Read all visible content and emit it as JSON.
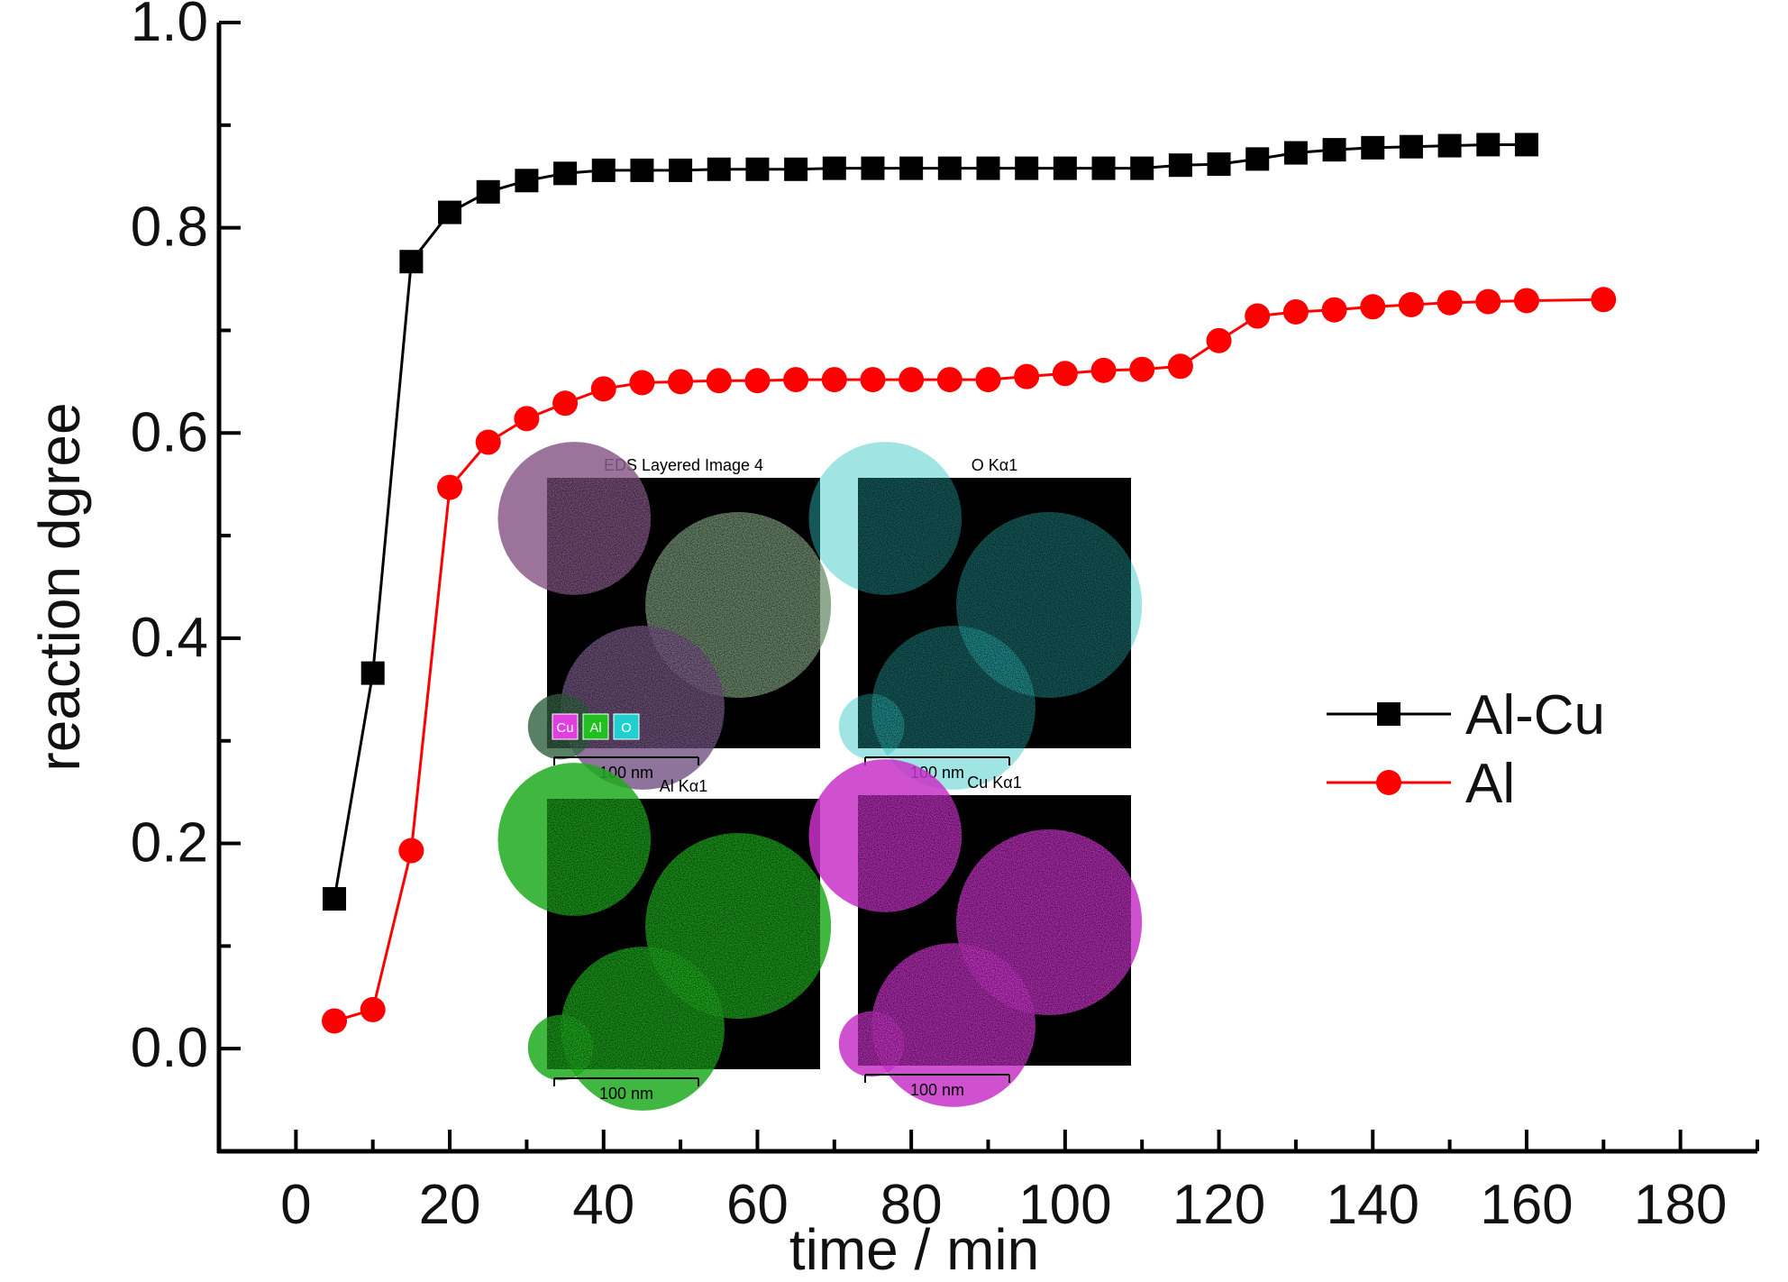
{
  "chart_data": {
    "type": "line",
    "xlabel": "time / min",
    "ylabel": "reaction dgree",
    "xlim": [
      -10,
      190
    ],
    "ylim": [
      -0.1,
      1.0
    ],
    "xticks": [
      0,
      20,
      40,
      60,
      80,
      100,
      120,
      140,
      160,
      180
    ],
    "yticks": [
      0.0,
      0.2,
      0.4,
      0.6,
      0.8,
      1.0
    ],
    "ytick_labels": [
      "0.0",
      "0.2",
      "0.4",
      "0.6",
      "0.8",
      "1.0"
    ],
    "legend_position": "center-right",
    "grid": false,
    "series": [
      {
        "name": "Al-Cu",
        "color": "#000000",
        "marker": "square",
        "x": [
          5,
          10,
          15,
          20,
          25,
          30,
          35,
          40,
          45,
          50,
          55,
          60,
          65,
          70,
          75,
          80,
          85,
          90,
          95,
          100,
          105,
          110,
          115,
          120,
          125,
          130,
          135,
          140,
          145,
          150,
          155,
          160
        ],
        "y": [
          0.146,
          0.366,
          0.767,
          0.815,
          0.835,
          0.846,
          0.853,
          0.856,
          0.856,
          0.856,
          0.857,
          0.857,
          0.857,
          0.858,
          0.858,
          0.858,
          0.858,
          0.858,
          0.858,
          0.858,
          0.858,
          0.858,
          0.861,
          0.862,
          0.867,
          0.873,
          0.876,
          0.878,
          0.879,
          0.88,
          0.881,
          0.881
        ]
      },
      {
        "name": "Al",
        "color": "#ff0000",
        "marker": "circle",
        "x": [
          5,
          10,
          15,
          20,
          25,
          30,
          35,
          40,
          45,
          50,
          55,
          60,
          65,
          70,
          75,
          80,
          85,
          90,
          95,
          100,
          105,
          110,
          115,
          120,
          125,
          130,
          135,
          140,
          145,
          150,
          155,
          160,
          170
        ],
        "y": [
          0.027,
          0.038,
          0.193,
          0.547,
          0.591,
          0.614,
          0.629,
          0.643,
          0.649,
          0.65,
          0.651,
          0.651,
          0.652,
          0.652,
          0.652,
          0.652,
          0.652,
          0.652,
          0.655,
          0.658,
          0.661,
          0.662,
          0.665,
          0.69,
          0.714,
          0.718,
          0.72,
          0.723,
          0.725,
          0.727,
          0.728,
          0.729,
          0.73
        ]
      }
    ]
  },
  "inset": {
    "panels": [
      {
        "title": "EDS Layered Image 4",
        "scale_label": "100 nm",
        "element_keys": [
          "Cu",
          "Al",
          "O"
        ],
        "key_colors": [
          "#e040e0",
          "#20c020",
          "#20d0d0"
        ]
      },
      {
        "title": "O Kα1",
        "scale_label": "100 nm",
        "color": "#2fc3c3"
      },
      {
        "title": "Al Kα1",
        "scale_label": "100 nm",
        "color": "#1faa1f"
      },
      {
        "title": "Cu Kα1",
        "scale_label": "100 nm",
        "color": "#c832c8"
      }
    ]
  }
}
